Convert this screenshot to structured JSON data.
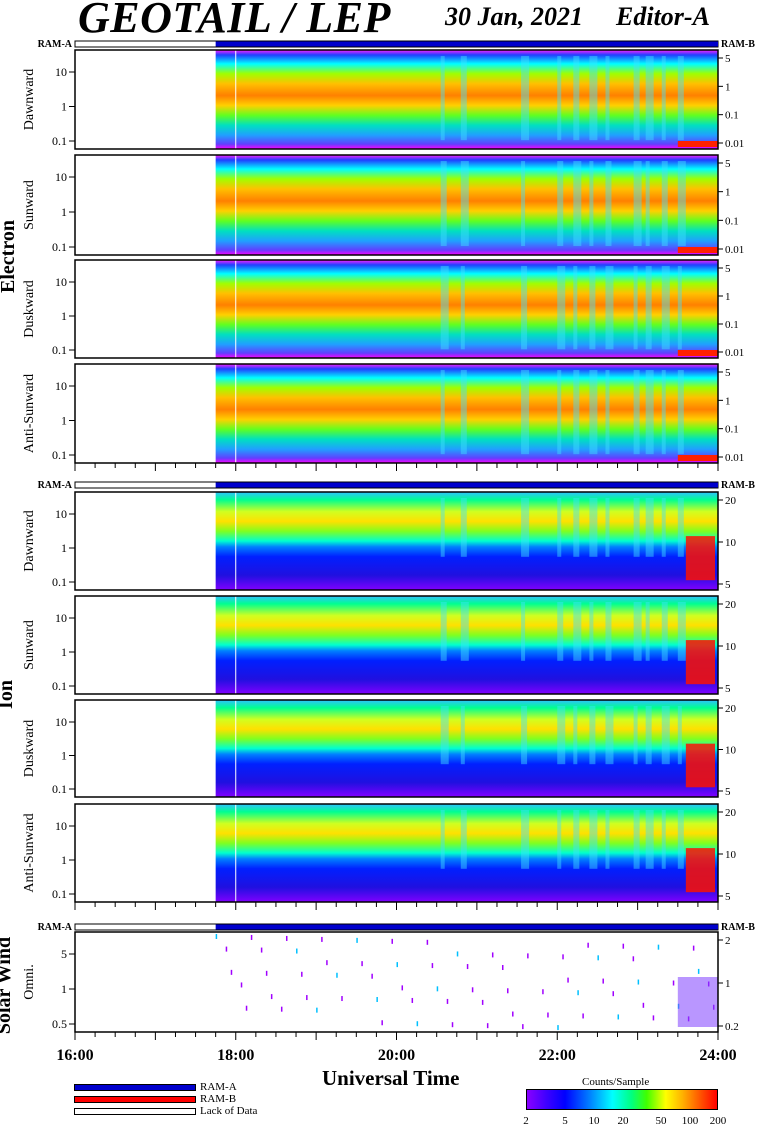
{
  "header": {
    "title": "GEOTAIL / LEP",
    "date": "30 Jan, 2021",
    "editor": "Editor-A"
  },
  "groups": [
    {
      "name": "Electron",
      "panels": [
        "Dawnward",
        "Sunward",
        "Duskward",
        "Anti-Sunward"
      ]
    },
    {
      "name": "Ion",
      "panels": [
        "Dawnward",
        "Sunward",
        "Duskward",
        "Anti-Sunward"
      ]
    },
    {
      "name": "Solar Wind",
      "panels": [
        "Omni."
      ]
    }
  ],
  "ram_labels": {
    "left": "RAM-A",
    "right": "RAM-B"
  },
  "x_axis": {
    "title": "Universal Time",
    "range": [
      "16:00",
      "24:00"
    ],
    "ticks": [
      "16:00",
      "18:00",
      "20:00",
      "22:00",
      "24:00"
    ]
  },
  "legend": {
    "items": [
      {
        "label": "RAM-A",
        "color": "#0000cc"
      },
      {
        "label": "RAM-B",
        "color": "#ff0000"
      },
      {
        "label": "Lack of Data",
        "color": "#ffffff"
      }
    ]
  },
  "colorbar": {
    "title": "Counts/Sample",
    "ticks": [
      "2",
      "5",
      "10",
      "20",
      "50",
      "100",
      "200"
    ],
    "scale": "log"
  },
  "chart_data": {
    "type": "heatmap",
    "title": "GEOTAIL / LEP",
    "xlabel": "Universal Time",
    "x_range_hours": [
      16,
      24
    ],
    "data_start_hour": 17.75,
    "electron_panels": {
      "left_axis_ticks": [
        "10",
        "1",
        "0.1"
      ],
      "right_axis_ticks": [
        "5",
        "1",
        "0.1",
        "0.01"
      ]
    },
    "ion_panels": {
      "left_axis_ticks": [
        "10",
        "1",
        "0.1"
      ],
      "right_axis_ticks": [
        "20",
        "10",
        "5"
      ]
    },
    "solar_wind_panel": {
      "left_axis_ticks": [
        "5",
        "1",
        "0.5"
      ],
      "right_axis_ticks": [
        "2",
        "1",
        "0.2"
      ]
    },
    "mode_bars": [
      {
        "group": "Electron",
        "mode": "RAM-A",
        "start_hour": 17.75,
        "end_hour": 24
      },
      {
        "group": "Ion",
        "mode": "RAM-A",
        "start_hour": 17.75,
        "end_hour": 24
      },
      {
        "group": "Solar Wind",
        "mode": "RAM-A",
        "start_hour": 17.75,
        "end_hour": 24
      }
    ],
    "colorbar_range": [
      2,
      200
    ]
  }
}
